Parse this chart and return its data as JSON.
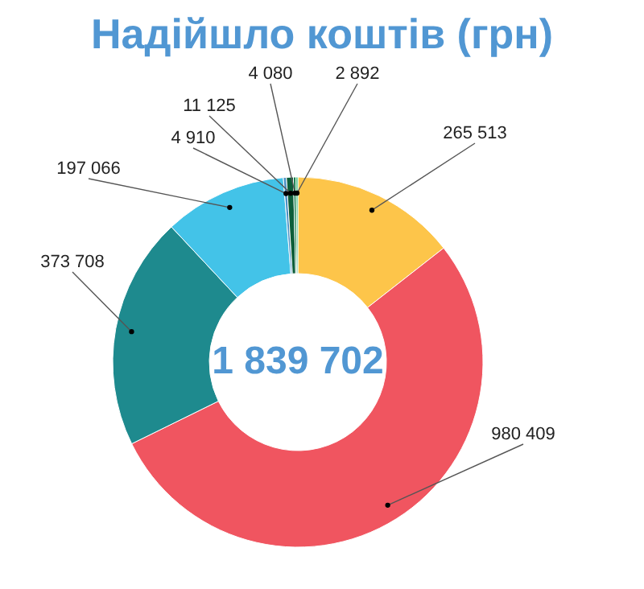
{
  "chart_data": {
    "type": "donut",
    "title": "Надійшло коштів (грн)",
    "categories": [
      null,
      null,
      null,
      null,
      null,
      null,
      null,
      null
    ],
    "values": [
      265513,
      980409,
      373708,
      197066,
      4910,
      11125,
      4080,
      2892
    ],
    "value_labels": [
      "265 513",
      "980 409",
      "373 708",
      "197 066",
      "4 910",
      "11 125",
      "4 080",
      "2 892"
    ],
    "colors": [
      "#fdc54a",
      "#f05560",
      "#1e8a8e",
      "#43c3e8",
      "#4a8fc4",
      "#0d5e3a",
      "#0e7a45",
      "#1db368"
    ],
    "annotations": [
      "1 839 702"
    ]
  }
}
